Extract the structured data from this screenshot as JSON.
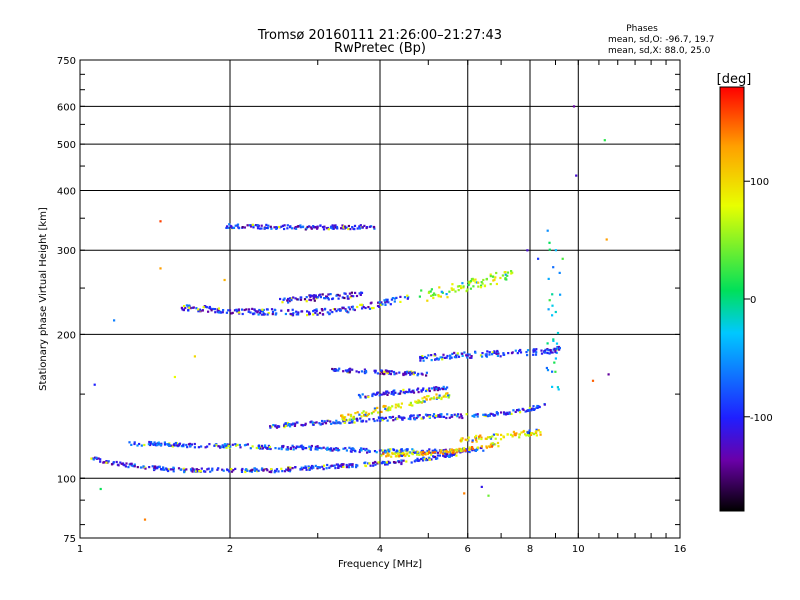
{
  "chart_data": {
    "type": "scatter",
    "title": "Tromsø 20160111 21:26:00–21:27:43",
    "subtitle": "RwPretec (Bp)",
    "stats": {
      "heading": "Phases",
      "line_o": "mean, sd,O: -96.7, 19.7",
      "line_x": "mean, sd,X:  88.0, 25.0"
    },
    "xlabel": "Frequency [MHz]",
    "ylabel": "Stationary phase Virtual Height [km]",
    "x_scale": "log",
    "y_scale": "log",
    "xlim": [
      1,
      16
    ],
    "ylim": [
      75,
      750
    ],
    "x_ticks": [
      1,
      2,
      4,
      6,
      8,
      10,
      16
    ],
    "x_tick_labels": [
      "1",
      "2",
      "4",
      "6",
      "8",
      "10",
      "16"
    ],
    "y_ticks": [
      75,
      100,
      200,
      300,
      400,
      500,
      600,
      750
    ],
    "y_tick_labels": [
      "75",
      "100",
      "200",
      "300",
      "400",
      "500",
      "600",
      "750"
    ],
    "grid": true,
    "colorbar": {
      "label": "[deg]",
      "range": [
        -180,
        180
      ],
      "ticks": [
        -100,
        0,
        100
      ],
      "tick_labels": [
        "-100",
        "0",
        "100"
      ],
      "colormap": [
        "#000000",
        "#6a00a8",
        "#1f1fff",
        "#00c8ff",
        "#00e05a",
        "#e8ff00",
        "#ffa000",
        "#ff0000"
      ]
    },
    "traces": [
      {
        "name": "",
        "x_range": [
          1.05,
          5.8
        ],
        "heights": [
          110,
          107,
          105,
          104,
          104,
          104,
          104,
          105,
          106,
          107,
          108,
          110,
          113
        ],
        "phase": -100,
        "spread": 2
      },
      {
        "name": "",
        "x_range": [
          1.25,
          6.5
        ],
        "heights": [
          118,
          118,
          117,
          117,
          116,
          116,
          115,
          114,
          114,
          114,
          115
        ],
        "phase": -90,
        "spread": 2
      },
      {
        "name": "",
        "x_range": [
          2.4,
          8.6
        ],
        "heights": [
          128,
          130,
          131,
          132,
          133,
          134,
          135,
          135,
          136,
          138,
          142
        ],
        "phase": -95,
        "spread": 2
      },
      {
        "name": "",
        "x_range": [
          4.0,
          7.0
        ],
        "heights": [
          112,
          112,
          113,
          114,
          116,
          118
        ],
        "phase": 110,
        "spread": 2
      },
      {
        "name": "",
        "x_range": [
          5.8,
          8.4
        ],
        "heights": [
          120,
          121,
          122,
          123,
          124,
          125
        ],
        "phase": 100,
        "spread": 3
      },
      {
        "name": "",
        "x_range": [
          3.3,
          5.6
        ],
        "heights": [
          133,
          136,
          140,
          143,
          147,
          150
        ],
        "phase": 90,
        "spread": 3
      },
      {
        "name": "",
        "x_range": [
          3.6,
          5.5
        ],
        "heights": [
          148,
          150,
          152,
          153,
          155
        ],
        "phase": -100,
        "spread": 2
      },
      {
        "name": "",
        "x_range": [
          3.2,
          5.0
        ],
        "heights": [
          168,
          168,
          167,
          166,
          165
        ],
        "phase": -110,
        "spread": 2
      },
      {
        "name": "",
        "x_range": [
          4.8,
          9.2
        ],
        "heights": [
          178,
          180,
          181,
          182,
          183,
          184,
          186
        ],
        "phase": -90,
        "spread": 3
      },
      {
        "name": "",
        "x_range": [
          1.6,
          4.6
        ],
        "heights": [
          228,
          226,
          224,
          223,
          222,
          223,
          226,
          232,
          240
        ],
        "phase": -100,
        "spread": 3
      },
      {
        "name": "",
        "x_range": [
          2.5,
          3.7
        ],
        "heights": [
          235,
          238,
          240,
          242
        ],
        "phase": -110,
        "spread": 3
      },
      {
        "name": "",
        "x_range": [
          4.8,
          7.4
        ],
        "heights": [
          240,
          245,
          252,
          260,
          268
        ],
        "phase": 60,
        "spread": 6
      },
      {
        "name": "",
        "x_range": [
          1.95,
          3.9
        ],
        "heights": [
          337,
          336,
          335,
          335,
          336
        ],
        "phase": -105,
        "spread": 2
      },
      {
        "name": "",
        "x_range": [
          8.9,
          9.4
        ],
        "heights": [
          150,
          180,
          220,
          260,
          300,
          335
        ],
        "phase": -30,
        "spread": 5
      }
    ],
    "scattered_points": [
      {
        "x": 1.45,
        "y": 345,
        "phase": 160
      },
      {
        "x": 1.45,
        "y": 275,
        "phase": 130
      },
      {
        "x": 1.17,
        "y": 214,
        "phase": -60
      },
      {
        "x": 1.35,
        "y": 82,
        "phase": 140
      },
      {
        "x": 1.07,
        "y": 157,
        "phase": -100
      },
      {
        "x": 1.55,
        "y": 163,
        "phase": 80
      },
      {
        "x": 1.7,
        "y": 180,
        "phase": 100
      },
      {
        "x": 1.95,
        "y": 260,
        "phase": 120
      },
      {
        "x": 5.9,
        "y": 93,
        "phase": 140
      },
      {
        "x": 6.4,
        "y": 96,
        "phase": -110
      },
      {
        "x": 6.6,
        "y": 92,
        "phase": 40
      },
      {
        "x": 9.8,
        "y": 600,
        "phase": -140
      },
      {
        "x": 9.9,
        "y": 430,
        "phase": -120
      },
      {
        "x": 11.3,
        "y": 510,
        "phase": 20
      },
      {
        "x": 11.4,
        "y": 316,
        "phase": 130
      },
      {
        "x": 11.5,
        "y": 165,
        "phase": -140
      },
      {
        "x": 10.7,
        "y": 160,
        "phase": 150
      },
      {
        "x": 7.9,
        "y": 300,
        "phase": -120
      },
      {
        "x": 8.3,
        "y": 288,
        "phase": -90
      },
      {
        "x": 9.3,
        "y": 288,
        "phase": 30
      },
      {
        "x": 1.1,
        "y": 95,
        "phase": 10
      }
    ]
  }
}
